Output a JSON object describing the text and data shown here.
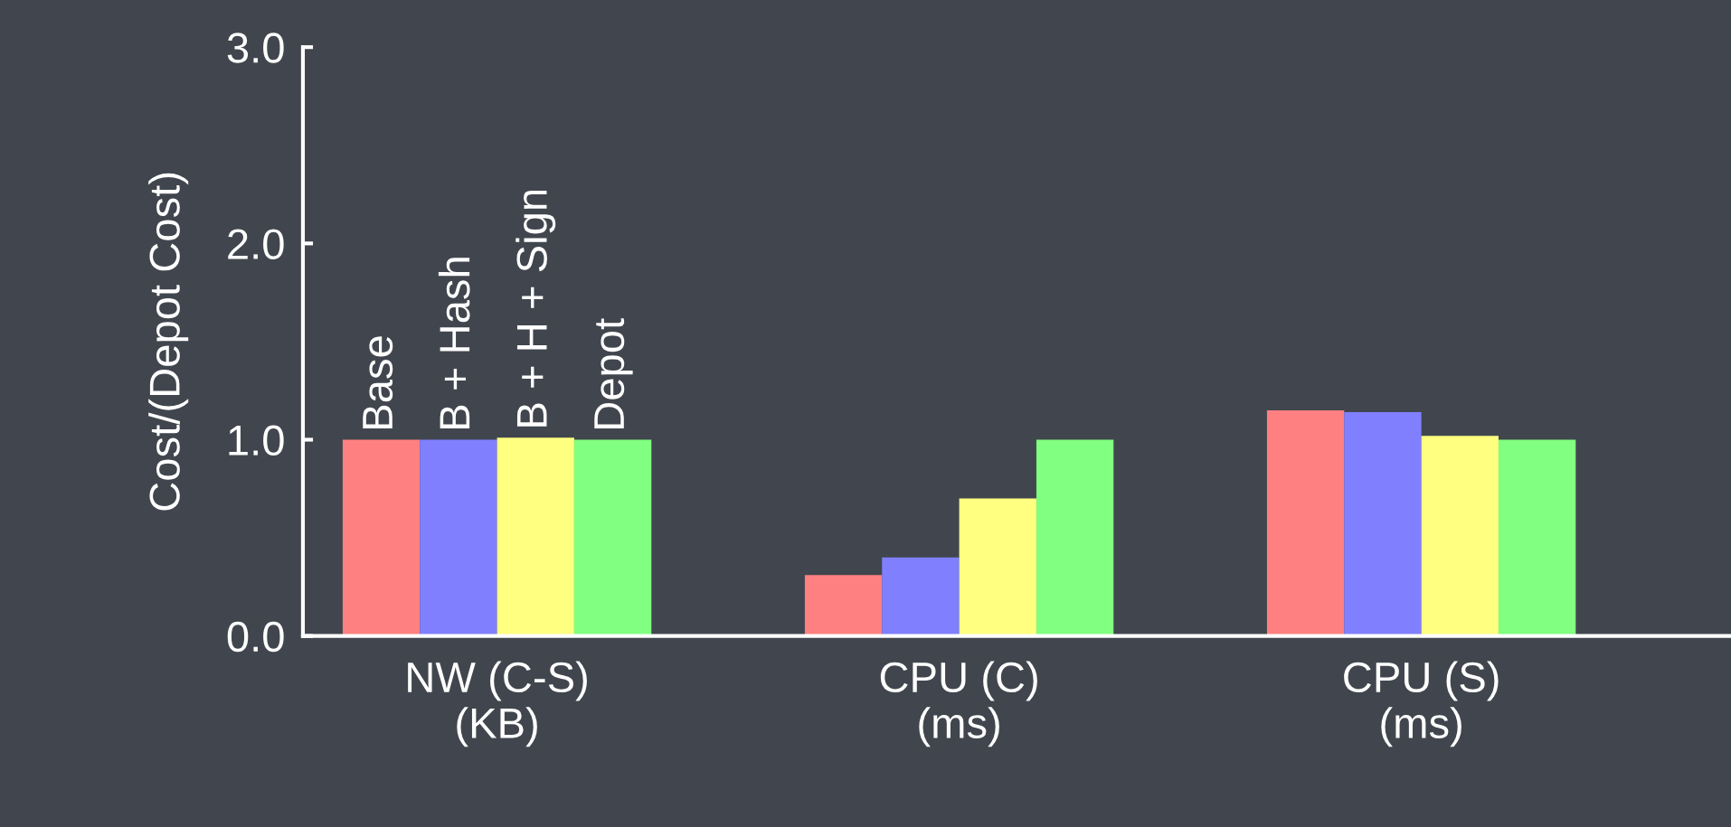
{
  "chart_data": {
    "type": "bar",
    "ylabel": "Cost/(Depot Cost)",
    "categories": [
      "NW (C-S)\n(KB)",
      "CPU (C)\n(ms)",
      "CPU (S)\n(ms)"
    ],
    "series": [
      {
        "name": "Base",
        "color": "#ff8080",
        "values": [
          1.0,
          0.31,
          1.15
        ]
      },
      {
        "name": "B + Hash",
        "color": "#8080ff",
        "values": [
          1.0,
          0.4,
          1.14
        ]
      },
      {
        "name": "B + H + Sign",
        "color": "#ffff80",
        "values": [
          1.01,
          0.7,
          1.02
        ]
      },
      {
        "name": "Depot",
        "color": "#80ff80",
        "values": [
          1.0,
          1.0,
          1.0
        ]
      }
    ],
    "ylim": [
      0,
      3
    ],
    "yticks": [
      {
        "value": 0,
        "label": "0.0"
      },
      {
        "value": 1,
        "label": "1.0"
      },
      {
        "value": 2,
        "label": "2.0"
      },
      {
        "value": 3,
        "label": "3.0"
      }
    ],
    "grid": false,
    "legend": false
  }
}
